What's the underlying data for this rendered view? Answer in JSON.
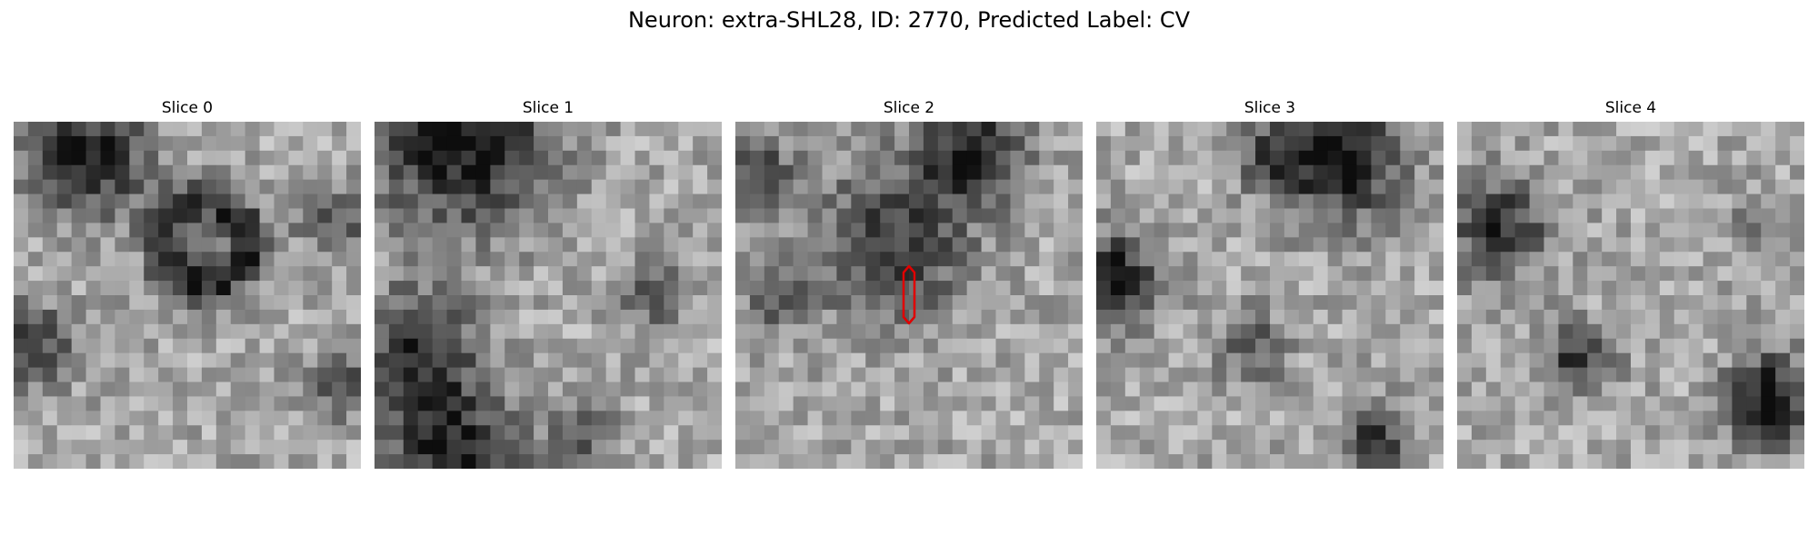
{
  "figure": {
    "title": "Neuron: extra-SHL28, ID: 2770, Predicted Label: CV"
  },
  "panels": [
    {
      "title": "Slice 0"
    },
    {
      "title": "Slice 1"
    },
    {
      "title": "Slice 2"
    },
    {
      "title": "Slice 3"
    },
    {
      "title": "Slice 4"
    }
  ],
  "colors": {
    "contour": "#e00000",
    "colormap": "gray"
  }
}
